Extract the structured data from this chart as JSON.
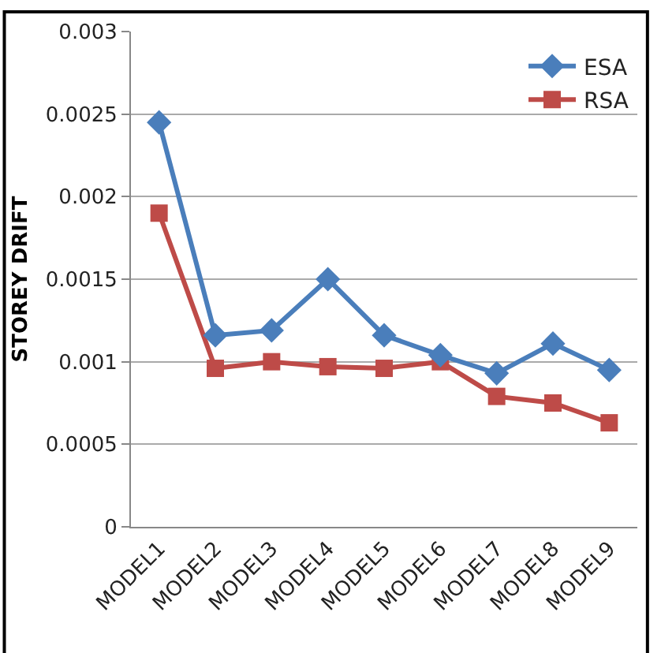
{
  "chart_data": {
    "type": "line",
    "ylabel": "STOREY DRIFT",
    "categories": [
      "MODEL1",
      "MODEL2",
      "MODEL3",
      "MODEL4",
      "MODEL5",
      "MODEL6",
      "MODEL7",
      "MODEL8",
      "MODEL9"
    ],
    "series": [
      {
        "name": "ESA",
        "color": "#4a7ebb",
        "marker": "diamond",
        "values": [
          0.00245,
          0.00116,
          0.00119,
          0.0015,
          0.00116,
          0.00104,
          0.00093,
          0.00111,
          0.00095
        ]
      },
      {
        "name": "RSA",
        "color": "#be4b48",
        "marker": "square",
        "values": [
          0.0019,
          0.00096,
          0.001,
          0.00097,
          0.00096,
          0.001,
          0.00079,
          0.00075,
          0.00063
        ]
      }
    ],
    "ylim": [
      0,
      0.003
    ],
    "yticks": [
      0,
      0.0005,
      0.001,
      0.0015,
      0.002,
      0.0025,
      0.003
    ],
    "grid": "y",
    "legend": "top right"
  }
}
